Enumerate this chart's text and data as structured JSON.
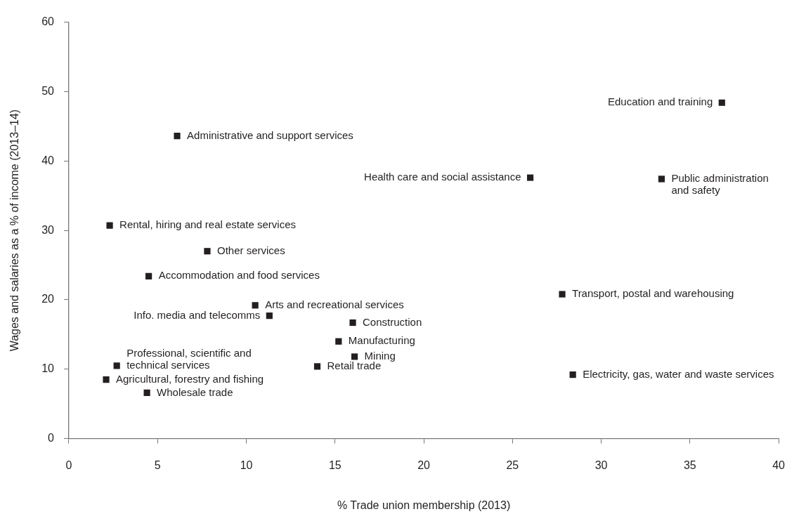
{
  "chart_data": {
    "type": "scatter",
    "xlabel": "% Trade union membership (2013)",
    "ylabel": "Wages and salaries as a % of income (2013–14)",
    "xlim": [
      0,
      40
    ],
    "xticks": [
      0,
      5,
      10,
      15,
      20,
      25,
      30,
      35,
      40
    ],
    "ylim": [
      0,
      60
    ],
    "yticks": [
      0,
      10,
      20,
      30,
      40,
      50,
      60
    ],
    "grid": false,
    "legend": false,
    "marker": "square",
    "series": [
      {
        "color": "#231f20",
        "x": [
          36.8,
          6.1,
          26.0,
          33.4,
          2.3,
          7.8,
          4.5,
          27.8,
          10.5,
          11.3,
          16.0,
          15.2,
          16.1,
          14.0,
          2.7,
          2.1,
          4.4,
          28.4
        ],
        "values": [
          48.4,
          43.6,
          37.6,
          37.4,
          30.7,
          27.0,
          23.4,
          20.8,
          19.2,
          17.7,
          16.7,
          14.0,
          11.8,
          10.4,
          10.5,
          8.5,
          6.6,
          9.2
        ]
      }
    ],
    "annotations": [
      {
        "text": "Education and training",
        "x": 36.8,
        "y": 48.4
      },
      {
        "text": "Administrative and support services",
        "x": 6.1,
        "y": 43.6
      },
      {
        "text": "Health care and social assistance",
        "x": 26.0,
        "y": 37.6
      },
      {
        "text": "Public administration\nand safety",
        "x": 33.4,
        "y": 37.4
      },
      {
        "text": "Rental, hiring and real estate services",
        "x": 2.3,
        "y": 30.7
      },
      {
        "text": "Other services",
        "x": 7.8,
        "y": 27.0
      },
      {
        "text": "Accommodation and food services",
        "x": 4.5,
        "y": 23.4
      },
      {
        "text": "Transport, postal and warehousing",
        "x": 27.8,
        "y": 20.8
      },
      {
        "text": "Arts and recreational services",
        "x": 10.5,
        "y": 19.2
      },
      {
        "text": "Info. media and telecomms",
        "x": 11.3,
        "y": 17.7
      },
      {
        "text": "Construction",
        "x": 16.0,
        "y": 16.7
      },
      {
        "text": "Manufacturing",
        "x": 15.2,
        "y": 14.0
      },
      {
        "text": "Mining",
        "x": 16.1,
        "y": 11.8
      },
      {
        "text": "Retail trade",
        "x": 14.0,
        "y": 10.4
      },
      {
        "text": "Professional, scientific and\ntechnical services",
        "x": 2.7,
        "y": 10.5
      },
      {
        "text": "Agricultural, forestry and fishing",
        "x": 2.1,
        "y": 8.5
      },
      {
        "text": "Wholesale trade",
        "x": 4.4,
        "y": 6.6
      },
      {
        "text": "Electricity, gas, water and waste services",
        "x": 28.4,
        "y": 9.2
      }
    ]
  }
}
